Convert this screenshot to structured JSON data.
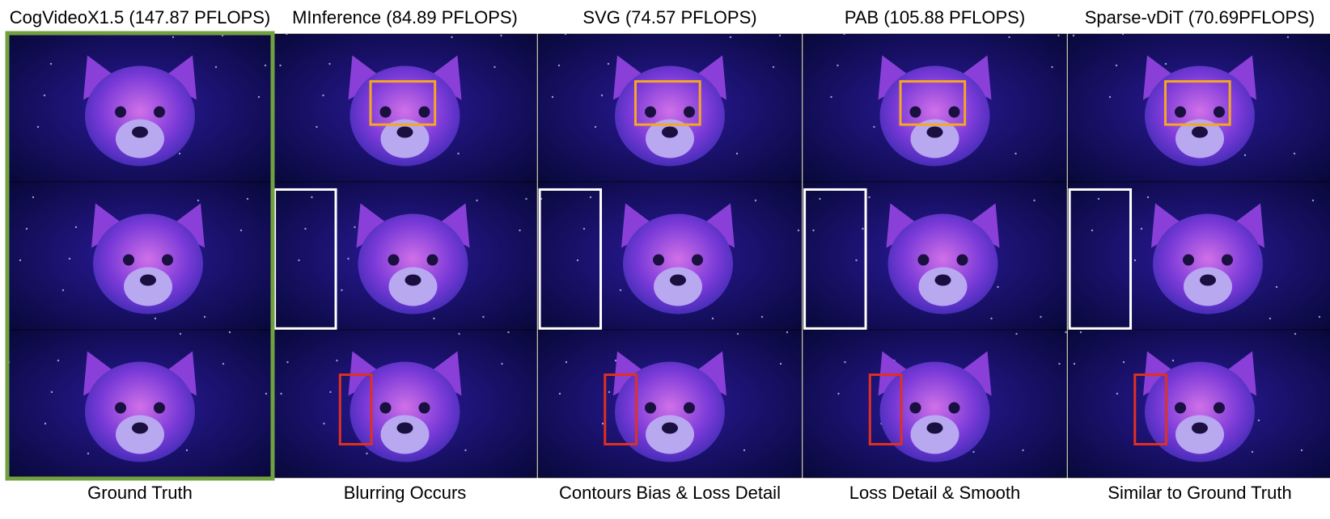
{
  "columns": [
    {
      "title": "CogVideoX1.5 (147.87 PFLOPS)",
      "caption": "Ground Truth"
    },
    {
      "title": "MInference (84.89 PFLOPS)",
      "caption": "Blurring Occurs"
    },
    {
      "title": "SVG (74.57 PFLOPS)",
      "caption": "Contours Bias & Loss Detail"
    },
    {
      "title": "PAB (105.88 PFLOPS)",
      "caption": "Loss Detail & Smooth"
    },
    {
      "title": "Sparse-vDiT (70.69PFLOPS)",
      "caption": "Similar to Ground Truth"
    }
  ]
}
